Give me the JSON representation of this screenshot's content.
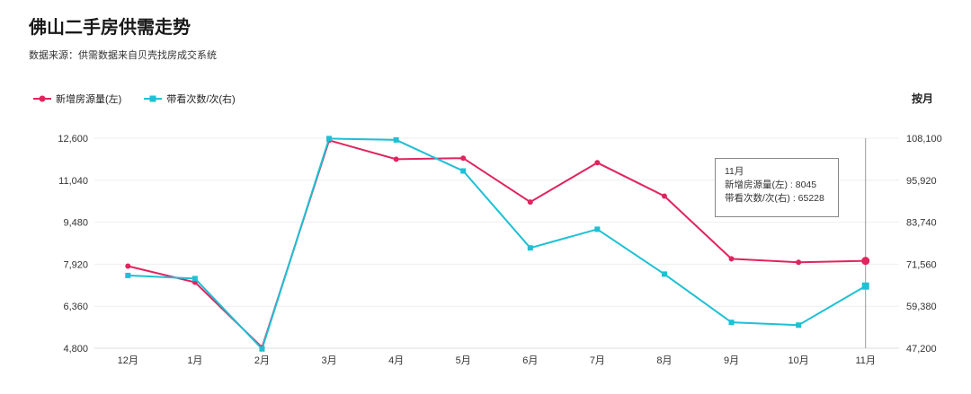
{
  "title": "佛山二手房供需走势",
  "subtitle": "数据来源：供需数据来自贝壳找房成交系统",
  "period_label": "按月",
  "colors": {
    "left": "#e0245e",
    "right": "#1ec0d4",
    "grid": "#eeeeee",
    "cursor": "#999999"
  },
  "tooltip": {
    "title": "11月",
    "line1": "新增房源量(左) : 8045",
    "line2": "带看次数/次(右) : 65228"
  },
  "chart_data": {
    "type": "line",
    "categories": [
      "12月",
      "1月",
      "2月",
      "3月",
      "4月",
      "5月",
      "6月",
      "7月",
      "8月",
      "9月",
      "10月",
      "11月"
    ],
    "series": [
      {
        "name": "新增房源量(左)",
        "axis": "left",
        "marker": "circle",
        "values": [
          7850,
          7250,
          4830,
          12520,
          11820,
          11860,
          10230,
          11690,
          10450,
          8120,
          7990,
          8045
        ]
      },
      {
        "name": "带看次数/次(右)",
        "axis": "right",
        "marker": "square",
        "values": [
          68300,
          67400,
          47000,
          108000,
          107600,
          98600,
          76300,
          81700,
          68700,
          54700,
          53900,
          65228
        ]
      }
    ],
    "ylim_left": [
      4800,
      12600
    ],
    "yticks_left": [
      "4,800",
      "6,360",
      "7,920",
      "9,480",
      "11,040",
      "12,600"
    ],
    "ylim_right": [
      47200,
      108100
    ],
    "yticks_right": [
      "47,200",
      "59,380",
      "71,560",
      "83,740",
      "95,920",
      "108,100"
    ],
    "grid": true,
    "legend": "top-left",
    "highlight_index": 11
  }
}
